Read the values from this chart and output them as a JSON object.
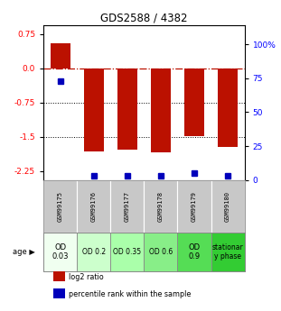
{
  "title": "GDS2588 / 4382",
  "samples": [
    "GSM99175",
    "GSM99176",
    "GSM99177",
    "GSM99178",
    "GSM99179",
    "GSM99180"
  ],
  "log2_ratios": [
    0.55,
    -1.82,
    -1.78,
    -1.85,
    -1.48,
    -1.72
  ],
  "percentile_ranks": [
    73,
    3,
    3,
    3,
    5,
    3
  ],
  "left_yticks": [
    0.75,
    0.0,
    -0.75,
    -1.5,
    -2.25
  ],
  "right_yticks": [
    100,
    75,
    50,
    25,
    0
  ],
  "right_ytick_labels": [
    "100%",
    "75",
    "50",
    "25",
    "0"
  ],
  "ylim_left": [
    -2.45,
    0.95
  ],
  "ylim_right": [
    0,
    114.3
  ],
  "bar_color": "#bb1100",
  "dot_color": "#0000bb",
  "dotted_lines": [
    -0.75,
    -1.5
  ],
  "age_labels": [
    "OD\n0.03",
    "OD 0.2",
    "OD 0.35",
    "OD 0.6",
    "OD\n0.9",
    "stationar\ny phase"
  ],
  "age_bg_colors": [
    "#f0fff0",
    "#ccffcc",
    "#aaffaa",
    "#88ee88",
    "#55dd55",
    "#33cc33"
  ],
  "sample_bg_color": "#c8c8c8",
  "legend_items": [
    {
      "color": "#bb1100",
      "label": "log2 ratio"
    },
    {
      "color": "#0000bb",
      "label": "percentile rank within the sample"
    }
  ]
}
